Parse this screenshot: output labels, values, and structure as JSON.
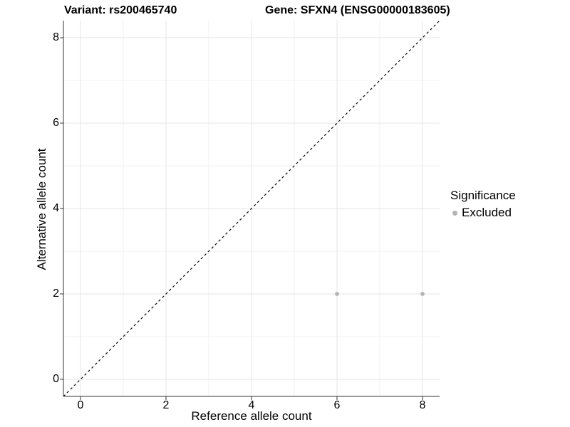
{
  "titles": {
    "variant": "Variant: rs200465740",
    "gene": "Gene: SFXN4 (ENSG00000183605)"
  },
  "axes": {
    "x_label": "Reference allele count",
    "y_label": "Alternative allele count"
  },
  "legend": {
    "title": "Significance",
    "items": [
      {
        "label": "Excluded",
        "color": "#b3b3b3"
      }
    ]
  },
  "colors": {
    "background": "#ffffff",
    "axis_line": "#333333",
    "major_grid": "#e5e5e5",
    "minor_grid": "#f2f2f2",
    "identity_line": "#1a1a1a",
    "point": "#b3b3b3",
    "text": "#000000"
  },
  "chart_data": {
    "type": "scatter",
    "title": "Variant: rs200465740  /  Gene: SFXN4 (ENSG00000183605)",
    "xlabel": "Reference allele count",
    "ylabel": "Alternative allele count",
    "xlim": [
      -0.4,
      8.4
    ],
    "ylim": [
      -0.4,
      8.4
    ],
    "xticks": [
      0,
      2,
      4,
      6,
      8
    ],
    "yticks": [
      0,
      2,
      4,
      6,
      8
    ],
    "grid": "major and minor, light gray on white",
    "legend_position": "right",
    "series": [
      {
        "name": "Excluded",
        "color": "#b3b3b3",
        "points": [
          [
            6,
            2
          ],
          [
            8,
            2
          ]
        ]
      }
    ],
    "annotations": [
      {
        "type": "abline",
        "slope": 1,
        "intercept": 0,
        "style": "dashed",
        "color": "#1a1a1a",
        "note": "identity line y = x"
      }
    ]
  }
}
